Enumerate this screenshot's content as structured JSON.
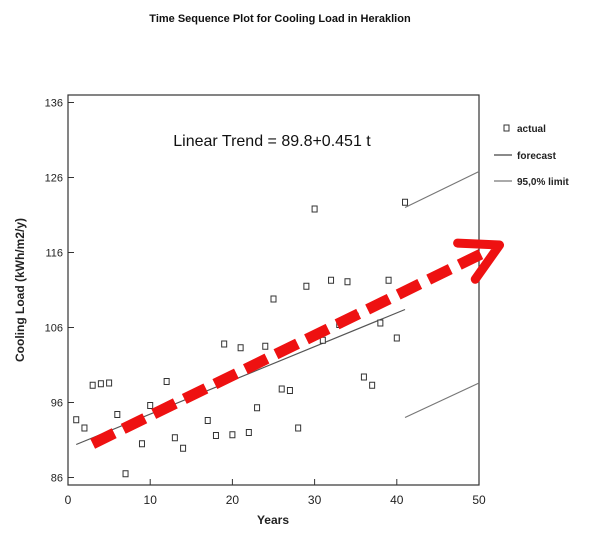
{
  "chart_data": {
    "type": "scatter",
    "title": "Time Sequence Plot for Cooling Load in Heraklion",
    "xlabel": "Years",
    "ylabel": "Cooling Load (kWh/m2/y)",
    "xlim": [
      0,
      50
    ],
    "ylim": [
      85,
      137
    ],
    "x_ticks": [
      0,
      10,
      20,
      30,
      40,
      50
    ],
    "y_ticks": [
      86,
      96,
      106,
      116,
      126,
      136
    ],
    "grid": false,
    "legend_position": "right",
    "annotation": "Linear Trend = 89.8+0.451 t",
    "series": [
      {
        "name": "actual",
        "marker": "square",
        "x": [
          1,
          2,
          3,
          4,
          5,
          6,
          7,
          8,
          9,
          10,
          12,
          13,
          14,
          17,
          18,
          19,
          20,
          21,
          22,
          23,
          24,
          25,
          26,
          27,
          28,
          29,
          30,
          31,
          32,
          33,
          34,
          35,
          36,
          37,
          38,
          39,
          40,
          41
        ],
        "y": [
          93.7,
          92.6,
          98.3,
          98.5,
          98.6,
          94.4,
          86.5,
          93.2,
          90.5,
          95.6,
          98.8,
          91.3,
          89.9,
          93.6,
          91.6,
          103.8,
          91.7,
          103.3,
          92.0,
          95.3,
          103.5,
          109.8,
          97.8,
          97.6,
          92.6,
          111.5,
          121.8,
          104.3,
          112.3,
          106.4,
          112.1,
          107.5,
          99.4,
          98.3,
          106.6,
          112.3,
          104.6,
          122.7
        ]
      },
      {
        "name": "forecast",
        "x": [
          1,
          41
        ],
        "y": [
          90.4,
          108.4
        ]
      },
      {
        "name": "95,0% limit",
        "upper": {
          "x": [
            41,
            50
          ],
          "y": [
            122.0,
            126.8
          ]
        },
        "lower": {
          "x": [
            41,
            50
          ],
          "y": [
            94.0,
            98.6
          ]
        }
      }
    ],
    "overlay_arrow": {
      "color": "#ee1111",
      "from": [
        3,
        90.5
      ],
      "to": [
        52.5,
        117.0
      ]
    }
  }
}
